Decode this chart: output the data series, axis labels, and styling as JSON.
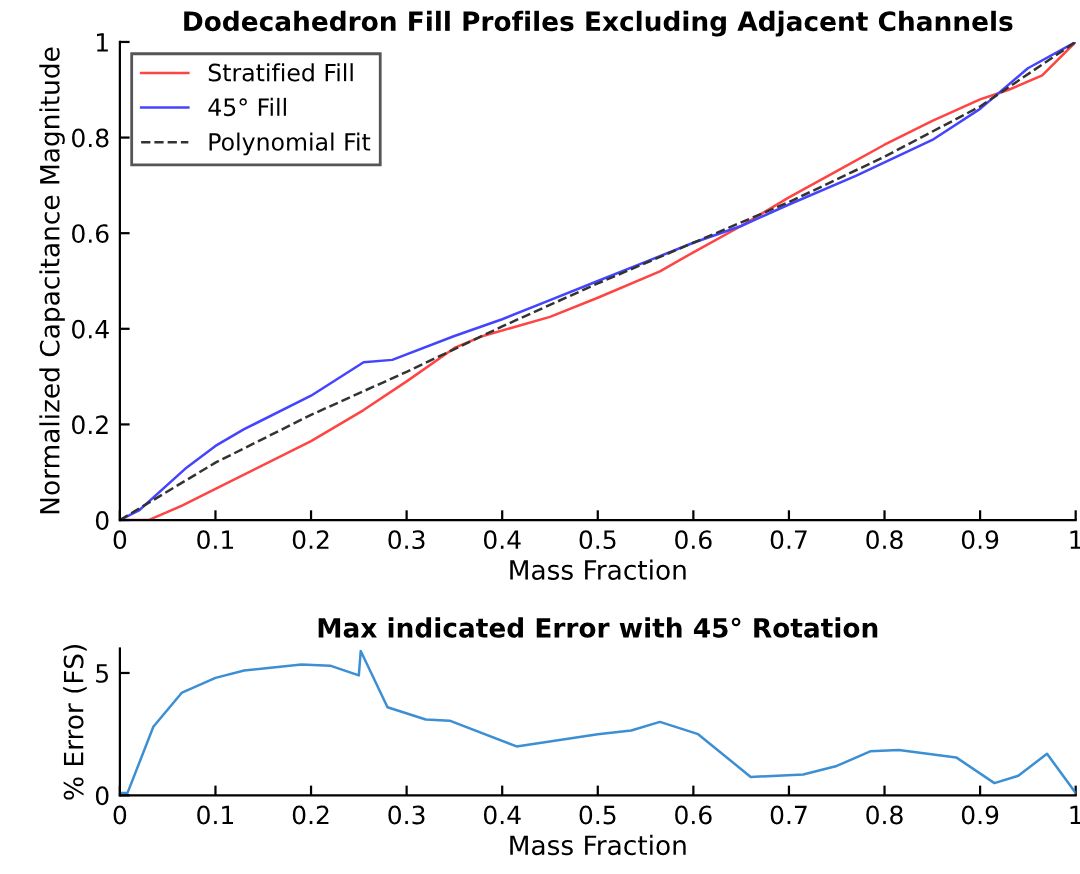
{
  "chart_data": [
    {
      "type": "line",
      "title": "Dodecahedron Fill Profiles Excluding Adjacent Channels",
      "xlabel": "Mass Fraction",
      "ylabel": "Normalized Capacitance Magnitude",
      "xlim": [
        0,
        1
      ],
      "ylim": [
        0,
        1
      ],
      "xticks": [
        0,
        0.1,
        0.2,
        0.3,
        0.4,
        0.5,
        0.6,
        0.7,
        0.8,
        0.9,
        1
      ],
      "yticks": [
        0,
        0.2,
        0.4,
        0.6,
        0.8,
        1
      ],
      "grid": false,
      "legend": "top left",
      "series": [
        {
          "name": "Stratified Fill",
          "color": "#ff4444",
          "line_style": "solid",
          "x": [
            0,
            0.03,
            0.065,
            0.1,
            0.2,
            0.255,
            0.3,
            0.35,
            0.38,
            0.45,
            0.5,
            0.565,
            0.6,
            0.65,
            0.7,
            0.75,
            0.8,
            0.85,
            0.9,
            0.93,
            0.965,
            1
          ],
          "values": [
            0,
            0,
            0.03,
            0.065,
            0.165,
            0.23,
            0.29,
            0.36,
            0.385,
            0.425,
            0.465,
            0.52,
            0.56,
            0.615,
            0.675,
            0.73,
            0.785,
            0.835,
            0.88,
            0.9,
            0.93,
            1
          ]
        },
        {
          "name": "45° Fill",
          "color": "#4444ff",
          "line_style": "solid",
          "x": [
            0,
            0.02,
            0.07,
            0.1,
            0.13,
            0.2,
            0.255,
            0.285,
            0.35,
            0.4,
            0.45,
            0.5,
            0.55,
            0.6,
            0.65,
            0.7,
            0.77,
            0.85,
            0.9,
            0.95,
            1
          ],
          "values": [
            0,
            0.02,
            0.11,
            0.155,
            0.19,
            0.26,
            0.33,
            0.335,
            0.385,
            0.42,
            0.46,
            0.5,
            0.54,
            0.58,
            0.615,
            0.66,
            0.72,
            0.795,
            0.86,
            0.945,
            1
          ]
        },
        {
          "name": "Polynomial Fit",
          "color": "#333333",
          "line_style": "dashed",
          "x": [
            0,
            0.1,
            0.2,
            0.3,
            0.4,
            0.5,
            0.6,
            0.7,
            0.8,
            0.9,
            1
          ],
          "values": [
            0,
            0.12,
            0.22,
            0.31,
            0.405,
            0.495,
            0.58,
            0.665,
            0.76,
            0.865,
            1
          ]
        }
      ]
    },
    {
      "type": "line",
      "title": "Max indicated Error with 45° Rotation",
      "xlabel": "Mass Fraction",
      "ylabel": "% Error (FS)",
      "xlim": [
        0,
        1
      ],
      "ylim": [
        0,
        6
      ],
      "xticks": [
        0,
        0.1,
        0.2,
        0.3,
        0.4,
        0.5,
        0.6,
        0.7,
        0.8,
        0.9,
        1
      ],
      "yticks": [
        0,
        5
      ],
      "grid": false,
      "legend": false,
      "series": [
        {
          "color": "#3d8fd4",
          "line_style": "solid",
          "x": [
            0,
            0.008,
            0.012,
            0.035,
            0.065,
            0.1,
            0.13,
            0.19,
            0.22,
            0.25,
            0.252,
            0.28,
            0.32,
            0.345,
            0.415,
            0.5,
            0.535,
            0.565,
            0.605,
            0.66,
            0.715,
            0.75,
            0.785,
            0.815,
            0.875,
            0.915,
            0.94,
            0.97,
            1
          ],
          "values": [
            0.1,
            0.1,
            0.5,
            2.8,
            4.2,
            4.8,
            5.1,
            5.35,
            5.3,
            4.9,
            5.9,
            3.6,
            3.1,
            3.05,
            2.0,
            2.5,
            2.65,
            3.0,
            2.5,
            0.75,
            0.85,
            1.2,
            1.8,
            1.85,
            1.55,
            0.5,
            0.8,
            1.7,
            0.1
          ]
        }
      ]
    }
  ]
}
